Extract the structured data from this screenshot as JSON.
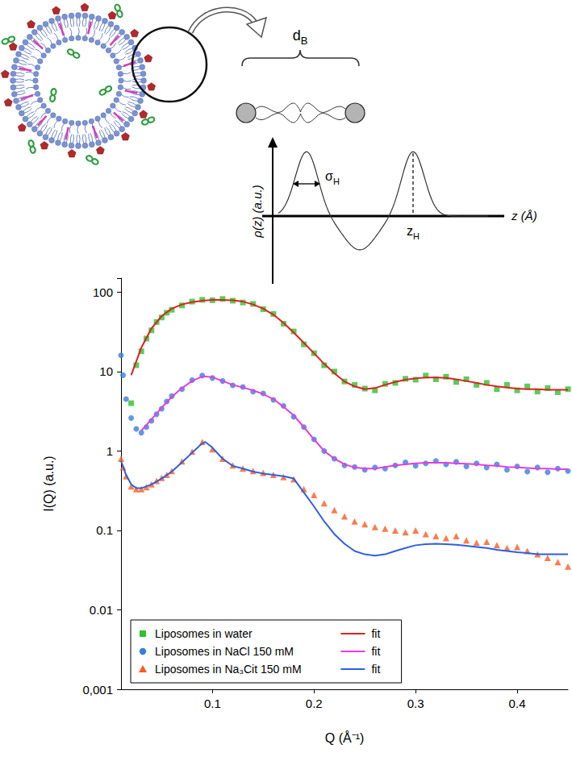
{
  "schematic": {
    "bilayer_thickness": {
      "symbol": "d",
      "subscript": "B"
    },
    "head_width": {
      "symbol": "σ",
      "subscript": "H"
    },
    "head_position": {
      "symbol": "z",
      "subscript": "H"
    },
    "y_axis_label": "ρ(z) (a.u.)",
    "x_axis_label": "z (Å)"
  },
  "chart_data": {
    "type": "scatter",
    "x_label": "Q (Å⁻¹)",
    "y_label": "I(Q) (a.u.)",
    "log": "y",
    "grid": false,
    "legend": "lower left",
    "xlim": [
      0.01,
      0.45
    ],
    "xticks": [
      0.1,
      0.2,
      0.3,
      0.4
    ],
    "ylim": [
      0.001,
      150
    ],
    "yticks": [
      {
        "value": 0.001,
        "label": "0,001"
      },
      0.01,
      0.1,
      1,
      10,
      100
    ],
    "series": [
      {
        "name": "Liposomes in water",
        "type": "scatter",
        "marker": "square",
        "color": "#2ec22e",
        "x": [
          0.02,
          0.025,
          0.03,
          0.035,
          0.04,
          0.045,
          0.05,
          0.055,
          0.06,
          0.07,
          0.08,
          0.09,
          0.1,
          0.11,
          0.12,
          0.13,
          0.14,
          0.15,
          0.16,
          0.17,
          0.18,
          0.19,
          0.2,
          0.21,
          0.22,
          0.23,
          0.24,
          0.25,
          0.26,
          0.27,
          0.28,
          0.29,
          0.3,
          0.31,
          0.32,
          0.33,
          0.34,
          0.35,
          0.36,
          0.37,
          0.38,
          0.39,
          0.4,
          0.41,
          0.42,
          0.43,
          0.44,
          0.45
        ],
        "values": [
          4,
          12,
          18,
          26,
          33,
          42,
          48,
          55,
          60,
          68,
          76,
          80,
          79,
          82,
          78,
          74,
          71,
          61,
          53,
          40,
          32,
          22,
          17,
          12,
          10,
          7.5,
          6.8,
          6.1,
          5.8,
          7.0,
          7.2,
          8.1,
          7.9,
          8.9,
          8.0,
          8.6,
          7.4,
          8.0,
          6.8,
          7.2,
          6.0,
          6.8,
          5.8,
          6.5,
          5.6,
          6.2,
          5.5,
          6.0
        ]
      },
      {
        "name": "fit",
        "type": "line",
        "line_style": "solid",
        "color": "#e02020",
        "x": [
          0.02,
          0.03,
          0.04,
          0.05,
          0.06,
          0.07,
          0.08,
          0.09,
          0.1,
          0.11,
          0.12,
          0.13,
          0.14,
          0.15,
          0.16,
          0.17,
          0.18,
          0.19,
          0.2,
          0.21,
          0.22,
          0.23,
          0.24,
          0.25,
          0.26,
          0.27,
          0.28,
          0.29,
          0.3,
          0.31,
          0.32,
          0.33,
          0.34,
          0.35,
          0.36,
          0.37,
          0.38,
          0.39,
          0.4,
          0.41,
          0.42,
          0.43,
          0.44,
          0.45
        ],
        "values": [
          9,
          20,
          35,
          50,
          62,
          70,
          75,
          78,
          80,
          80,
          79,
          76,
          70,
          62,
          52,
          41,
          31,
          23,
          17,
          12.5,
          9.5,
          7.5,
          6.5,
          6.0,
          6.2,
          6.8,
          7.4,
          7.9,
          8.2,
          8.4,
          8.4,
          8.3,
          8.0,
          7.6,
          7.2,
          6.8,
          6.5,
          6.3,
          6.1,
          6.0,
          6.0,
          5.9,
          5.9,
          5.9
        ]
      },
      {
        "name": "Liposomes in NaCl 150 mM",
        "type": "scatter",
        "marker": "circle",
        "color": "#3b7ddd",
        "x": [
          0.008,
          0.01,
          0.012,
          0.015,
          0.02,
          0.025,
          0.03,
          0.035,
          0.04,
          0.045,
          0.05,
          0.055,
          0.06,
          0.07,
          0.08,
          0.09,
          0.1,
          0.11,
          0.12,
          0.13,
          0.14,
          0.15,
          0.16,
          0.17,
          0.18,
          0.19,
          0.2,
          0.21,
          0.22,
          0.23,
          0.24,
          0.25,
          0.26,
          0.27,
          0.28,
          0.29,
          0.3,
          0.31,
          0.32,
          0.33,
          0.34,
          0.35,
          0.36,
          0.37,
          0.38,
          0.39,
          0.4,
          0.41,
          0.42,
          0.43,
          0.44,
          0.45
        ],
        "values": [
          30,
          16,
          9,
          4.5,
          2.6,
          1.9,
          1.7,
          2.0,
          2.4,
          2.9,
          3.4,
          4.2,
          4.9,
          6.0,
          7.8,
          8.9,
          8.3,
          7.6,
          6.7,
          6.4,
          5.6,
          5.3,
          4.4,
          3.7,
          2.7,
          2.0,
          1.4,
          1.0,
          0.8,
          0.66,
          0.63,
          0.58,
          0.62,
          0.6,
          0.66,
          0.72,
          0.65,
          0.7,
          0.75,
          0.68,
          0.73,
          0.64,
          0.7,
          0.62,
          0.68,
          0.58,
          0.64,
          0.55,
          0.62,
          0.54,
          0.6,
          0.56
        ]
      },
      {
        "name": "fit",
        "type": "line",
        "line_style": "solid",
        "color": "#e23ee0",
        "x": [
          0.03,
          0.04,
          0.05,
          0.06,
          0.07,
          0.08,
          0.09,
          0.1,
          0.11,
          0.12,
          0.13,
          0.14,
          0.15,
          0.16,
          0.17,
          0.18,
          0.19,
          0.2,
          0.21,
          0.22,
          0.23,
          0.24,
          0.25,
          0.26,
          0.27,
          0.28,
          0.29,
          0.3,
          0.31,
          0.32,
          0.33,
          0.34,
          0.35,
          0.36,
          0.37,
          0.38,
          0.39,
          0.4,
          0.41,
          0.42,
          0.43,
          0.44,
          0.45
        ],
        "values": [
          1.8,
          2.5,
          3.5,
          4.8,
          6.2,
          7.6,
          8.7,
          8.5,
          7.6,
          6.8,
          6.3,
          5.8,
          5.2,
          4.5,
          3.6,
          2.8,
          2.0,
          1.4,
          1.0,
          0.8,
          0.68,
          0.62,
          0.6,
          0.6,
          0.63,
          0.66,
          0.68,
          0.7,
          0.71,
          0.71,
          0.71,
          0.7,
          0.69,
          0.68,
          0.66,
          0.65,
          0.63,
          0.62,
          0.61,
          0.6,
          0.6,
          0.59,
          0.59
        ]
      },
      {
        "name": "Liposomes in Na₃Cit 150 mM",
        "type": "scatter",
        "marker": "triangle",
        "color": "#ff5a1f",
        "x": [
          0.008,
          0.01,
          0.012,
          0.015,
          0.02,
          0.025,
          0.03,
          0.035,
          0.04,
          0.045,
          0.05,
          0.055,
          0.06,
          0.07,
          0.08,
          0.09,
          0.1,
          0.11,
          0.12,
          0.13,
          0.14,
          0.15,
          0.16,
          0.17,
          0.18,
          0.19,
          0.2,
          0.21,
          0.22,
          0.23,
          0.24,
          0.25,
          0.26,
          0.27,
          0.28,
          0.29,
          0.3,
          0.31,
          0.32,
          0.33,
          0.34,
          0.35,
          0.36,
          0.37,
          0.38,
          0.39,
          0.4,
          0.41,
          0.42,
          0.43,
          0.44,
          0.45
        ],
        "values": [
          0.95,
          0.8,
          0.62,
          0.48,
          0.36,
          0.33,
          0.33,
          0.35,
          0.38,
          0.42,
          0.46,
          0.5,
          0.56,
          0.74,
          0.98,
          1.3,
          1.05,
          0.8,
          0.66,
          0.6,
          0.56,
          0.53,
          0.5,
          0.47,
          0.44,
          0.33,
          0.28,
          0.22,
          0.18,
          0.15,
          0.13,
          0.12,
          0.11,
          0.105,
          0.1,
          0.095,
          0.1,
          0.09,
          0.085,
          0.08,
          0.085,
          0.075,
          0.07,
          0.072,
          0.065,
          0.06,
          0.062,
          0.055,
          0.05,
          0.045,
          0.04,
          0.035
        ]
      },
      {
        "name": "fit",
        "type": "line",
        "line_style": "solid",
        "color": "#2f5fe0",
        "x": [
          0.01,
          0.015,
          0.02,
          0.025,
          0.03,
          0.04,
          0.05,
          0.06,
          0.07,
          0.08,
          0.09,
          0.093,
          0.1,
          0.11,
          0.12,
          0.13,
          0.14,
          0.15,
          0.16,
          0.17,
          0.18,
          0.19,
          0.2,
          0.21,
          0.22,
          0.23,
          0.24,
          0.25,
          0.26,
          0.27,
          0.28,
          0.29,
          0.3,
          0.31,
          0.32,
          0.33,
          0.34,
          0.35,
          0.36,
          0.37,
          0.38,
          0.39,
          0.4,
          0.41,
          0.42,
          0.43,
          0.44,
          0.45
        ],
        "values": [
          0.75,
          0.5,
          0.38,
          0.34,
          0.34,
          0.38,
          0.45,
          0.55,
          0.72,
          0.95,
          1.25,
          1.3,
          1.1,
          0.8,
          0.65,
          0.6,
          0.55,
          0.52,
          0.5,
          0.48,
          0.45,
          0.3,
          0.2,
          0.13,
          0.09,
          0.068,
          0.055,
          0.05,
          0.048,
          0.05,
          0.055,
          0.06,
          0.065,
          0.067,
          0.068,
          0.067,
          0.066,
          0.064,
          0.062,
          0.06,
          0.057,
          0.055,
          0.053,
          0.052,
          0.05,
          0.05,
          0.05,
          0.05
        ]
      }
    ]
  }
}
